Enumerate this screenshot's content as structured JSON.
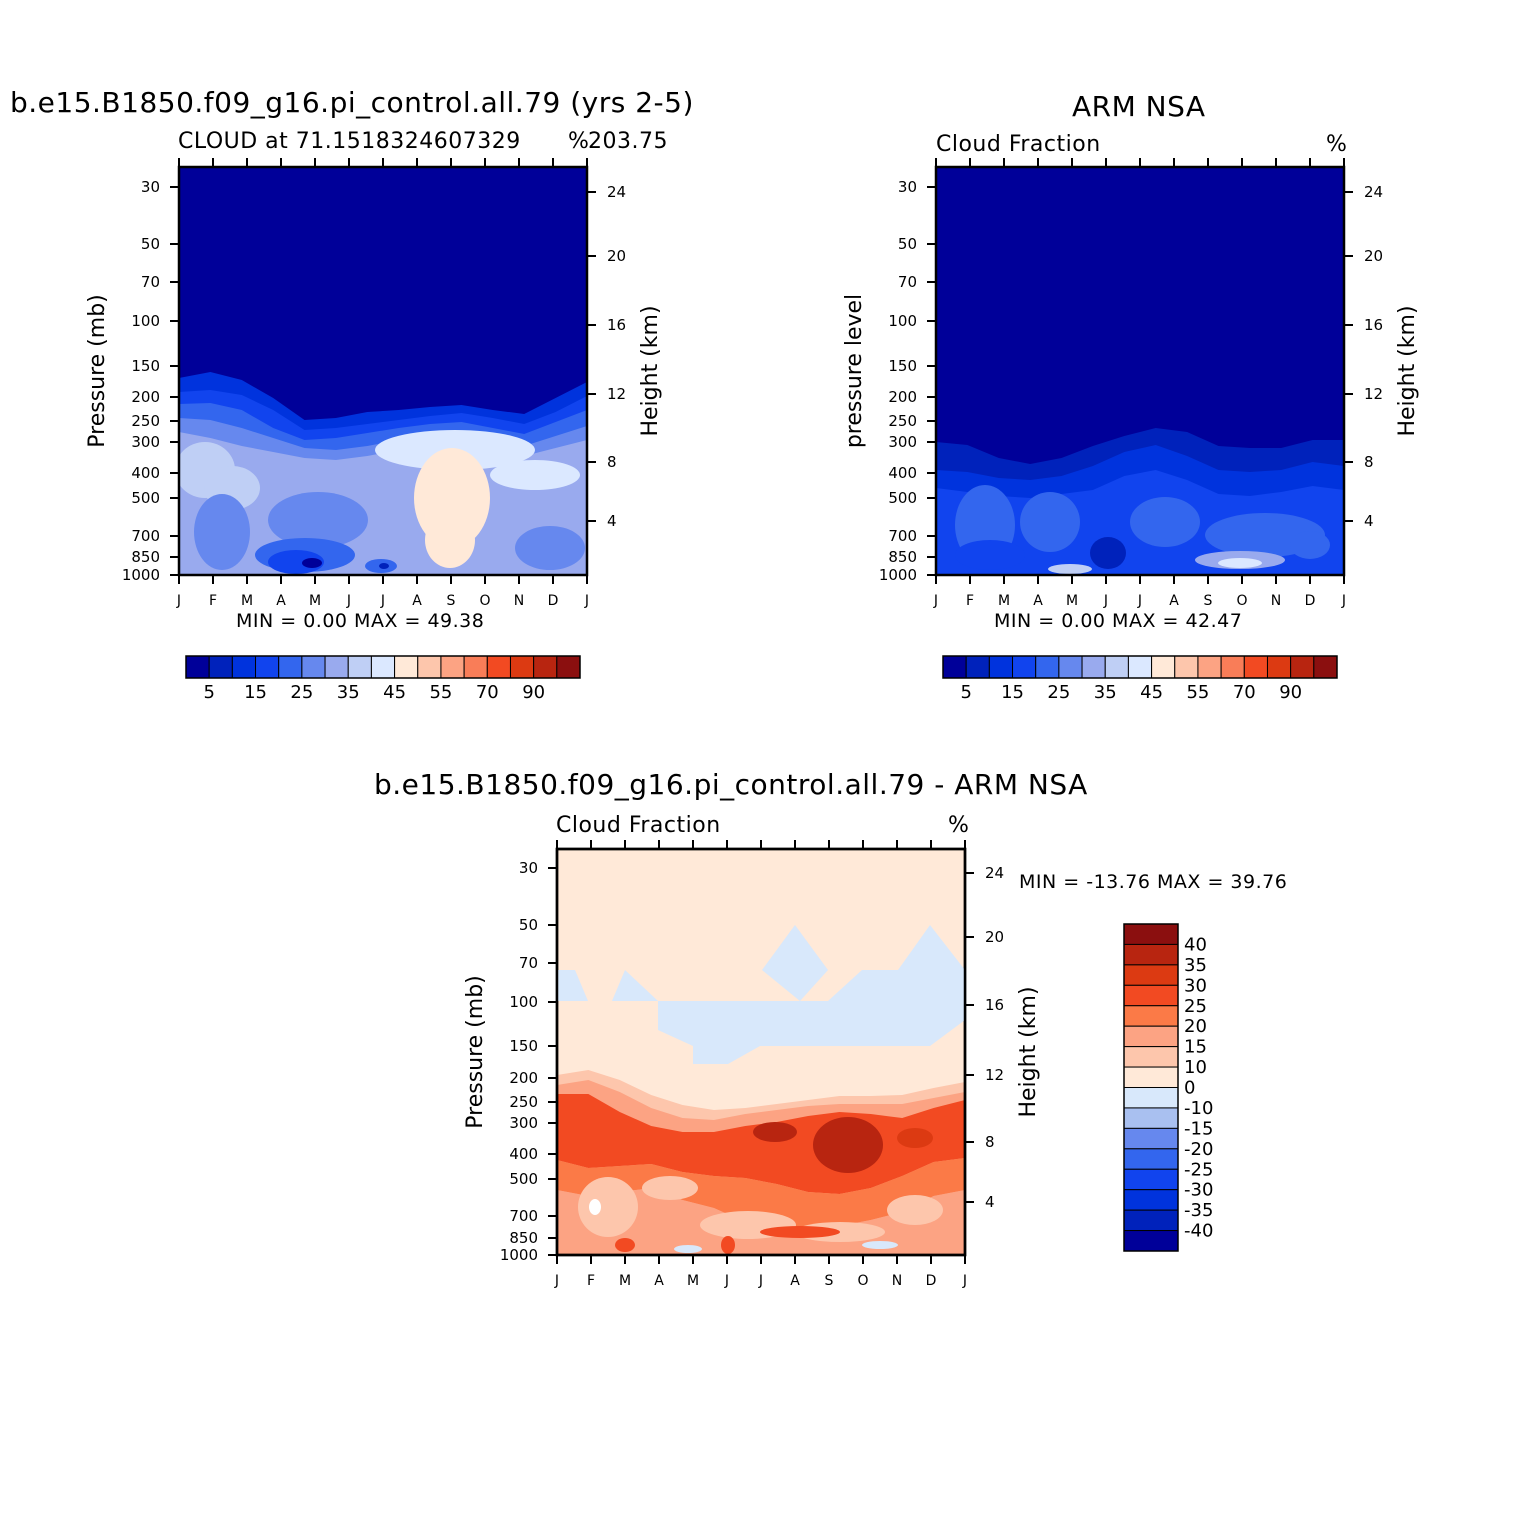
{
  "colors": {
    "seq": [
      "#000099",
      "#0022bb",
      "#0033dd",
      "#1144ee",
      "#3366ee",
      "#6688ee",
      "#99aaee",
      "#bfcff5",
      "#dbe8ff",
      "#ffe9d8",
      "#fdc6ac",
      "#fca383",
      "#f97d58",
      "#f24a22",
      "#dc3a12",
      "#b82510",
      "#8b0f0f"
    ],
    "div": [
      "#000099",
      "#0022bb",
      "#0033dd",
      "#1144ee",
      "#3366ee",
      "#6688ee",
      "#a9c0f0",
      "#d8e8fb",
      "#ffe9d8",
      "#fdc6ac",
      "#fca383",
      "#fb7a47",
      "#f24a22",
      "#dc3a12",
      "#b82510",
      "#8b0f0f"
    ]
  },
  "chart_data": [
    {
      "type": "heatmap",
      "title": "b.e15.B1850.f09_g16.pi_control.all.79 (yrs 2-5)",
      "subtitle_left": "CLOUD at 71.1518324607329",
      "subtitle_right": "%",
      "subtitle_extra": "203.75",
      "ylabel": "Pressure (mb)",
      "y2label": "Height (km)",
      "x_ticks": [
        "J",
        "F",
        "M",
        "A",
        "M",
        "J",
        "J",
        "A",
        "S",
        "O",
        "N",
        "D",
        "J"
      ],
      "y_ticks": [
        "30",
        "50",
        "70",
        "100",
        "150",
        "200",
        "250",
        "300",
        "400",
        "500",
        "700",
        "850",
        "1000"
      ],
      "y2_ticks": [
        "24",
        "20",
        "16",
        "12",
        "8",
        "4"
      ],
      "minmax": "MIN =    0.00 MAX =   49.38",
      "colorbar_labels": [
        "5",
        "15",
        "25",
        "35",
        "45",
        "55",
        "70",
        "90"
      ],
      "ylim": [
        1000,
        20
      ],
      "min": 0.0,
      "max": 49.38
    },
    {
      "type": "heatmap",
      "title": "ARM NSA",
      "subtitle_left": "Cloud Fraction",
      "subtitle_right": "%",
      "ylabel": "pressure level",
      "y2label": "Height (km)",
      "x_ticks": [
        "J",
        "F",
        "M",
        "A",
        "M",
        "J",
        "J",
        "A",
        "S",
        "O",
        "N",
        "D",
        "J"
      ],
      "y_ticks": [
        "30",
        "50",
        "70",
        "100",
        "150",
        "200",
        "250",
        "300",
        "400",
        "500",
        "700",
        "850",
        "1000"
      ],
      "y2_ticks": [
        "24",
        "20",
        "16",
        "12",
        "8",
        "4"
      ],
      "minmax": "MIN =    0.00 MAX =   42.47",
      "colorbar_labels": [
        "5",
        "15",
        "25",
        "35",
        "45",
        "55",
        "70",
        "90"
      ],
      "ylim": [
        1000,
        20
      ],
      "min": 0.0,
      "max": 42.47
    },
    {
      "type": "heatmap",
      "title": "b.e15.B1850.f09_g16.pi_control.all.79 - ARM NSA",
      "subtitle_left": "Cloud Fraction",
      "subtitle_right": "%",
      "ylabel": "Pressure (mb)",
      "y2label": "Height (km)",
      "x_ticks": [
        "J",
        "F",
        "M",
        "A",
        "M",
        "J",
        "J",
        "A",
        "S",
        "O",
        "N",
        "D",
        "J"
      ],
      "y_ticks": [
        "30",
        "50",
        "70",
        "100",
        "150",
        "200",
        "250",
        "300",
        "400",
        "500",
        "700",
        "850",
        "1000"
      ],
      "y2_ticks": [
        "24",
        "20",
        "16",
        "12",
        "8",
        "4"
      ],
      "minmax": "MIN = -13.76 MAX =   39.76",
      "colorbar_labels": [
        "40",
        "35",
        "30",
        "25",
        "20",
        "15",
        "10",
        "0",
        "-10",
        "-15",
        "-20",
        "-25",
        "-30",
        "-35",
        "-40"
      ],
      "ylim": [
        1000,
        20
      ],
      "min": -13.76,
      "max": 39.76
    }
  ]
}
